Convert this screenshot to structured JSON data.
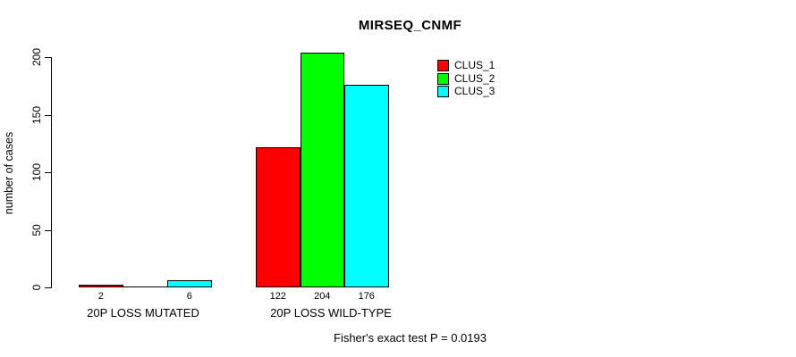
{
  "chart_data": {
    "type": "bar",
    "title": "MIRSEQ_CNMF",
    "xlabel": "",
    "ylabel": "number of cases",
    "ylim": [
      0,
      200
    ],
    "yticks": [
      0,
      50,
      100,
      150,
      200
    ],
    "grid": false,
    "categories": [
      "20P LOSS MUTATED",
      "20P LOSS WILD-TYPE"
    ],
    "series": [
      {
        "name": "CLUS_1",
        "color": "#FF0000",
        "values": [
          2,
          122
        ]
      },
      {
        "name": "CLUS_2",
        "color": "#00FF00",
        "values": [
          0,
          204
        ]
      },
      {
        "name": "CLUS_3",
        "color": "#00FFFF",
        "values": [
          6,
          176
        ]
      }
    ],
    "value_labels": [
      [
        "2",
        "",
        "6"
      ],
      [
        "122",
        "204",
        "176"
      ]
    ],
    "legend": {
      "position": "top-right",
      "entries": [
        "CLUS_1",
        "CLUS_2",
        "CLUS_3"
      ]
    },
    "note": "Fisher's exact test P = 0.0193",
    "bar_border_color": "#000000",
    "axis_color": "#000000"
  }
}
